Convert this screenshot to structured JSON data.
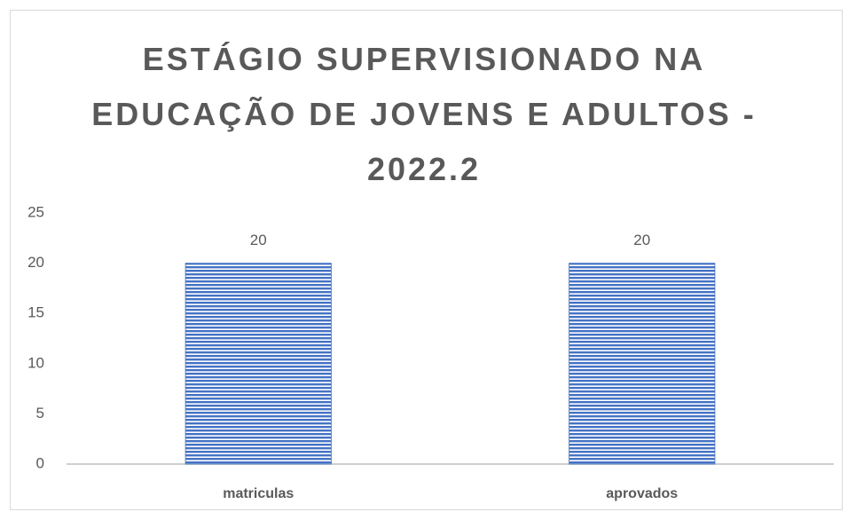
{
  "chart_data": {
    "type": "bar",
    "title": "ESTÁGIO SUPERVISIONADO NA EDUCAÇÃO DE JOVENS E ADULTOS - 2022.2",
    "categories": [
      "matriculas",
      "aprovados"
    ],
    "values": [
      20,
      20
    ],
    "color": "#4472c4",
    "ylim": [
      0,
      25
    ],
    "yticks": [
      0,
      5,
      10,
      15,
      20,
      25
    ],
    "grid": false
  }
}
